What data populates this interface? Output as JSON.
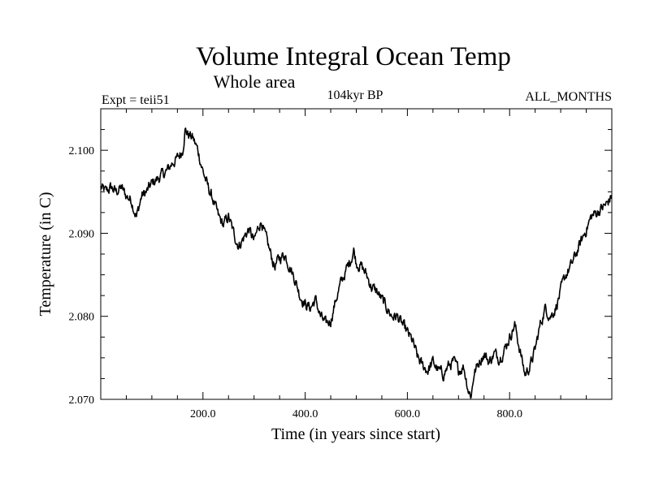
{
  "chart_data": {
    "type": "line",
    "title": "Volume Integral Ocean Temp",
    "subtitle": "Whole area",
    "experiment": "Expt = teii51",
    "period": "104kyr BP",
    "months": "ALL_MONTHS",
    "xlabel": "Time (in years since start)",
    "ylabel": "Temperature (in C)",
    "xlim": [
      0,
      1000
    ],
    "ylim": [
      2.07,
      2.105
    ],
    "x_ticks": [
      {
        "value": 200,
        "label": "200.0"
      },
      {
        "value": 400,
        "label": "400.0"
      },
      {
        "value": 600,
        "label": "600.0"
      },
      {
        "value": 800,
        "label": "800.0"
      }
    ],
    "y_ticks": [
      {
        "value": 2.07,
        "label": "2.070"
      },
      {
        "value": 2.08,
        "label": "2.080"
      },
      {
        "value": 2.09,
        "label": "2.090"
      },
      {
        "value": 2.1,
        "label": "2.100"
      }
    ],
    "grid": false,
    "line_color": "#000000",
    "series": [
      {
        "x": [
          0,
          10,
          20,
          30,
          40,
          50,
          60,
          70,
          80,
          90,
          100,
          110,
          120,
          130,
          140,
          150,
          160,
          165,
          170,
          180,
          190,
          200,
          210,
          220,
          230,
          240,
          250,
          260,
          270,
          280,
          290,
          300,
          310,
          315,
          320,
          330,
          340,
          350,
          360,
          370,
          380,
          390,
          400,
          410,
          420,
          430,
          440,
          450,
          460,
          470,
          480,
          490,
          495,
          500,
          510,
          520,
          530,
          540,
          550,
          560,
          570,
          580,
          590,
          600,
          610,
          620,
          630,
          640,
          650,
          660,
          670,
          680,
          690,
          700,
          710,
          720,
          725,
          730,
          740,
          750,
          760,
          770,
          780,
          790,
          800,
          810,
          820,
          830,
          840,
          850,
          860,
          870,
          880,
          890,
          900,
          910,
          920,
          930,
          940,
          950,
          960,
          970,
          980,
          990,
          1000
        ],
        "values": [
          2.0955,
          2.095,
          2.0955,
          2.095,
          2.0955,
          2.0945,
          2.094,
          2.092,
          2.0945,
          2.095,
          2.096,
          2.0965,
          2.097,
          2.0975,
          2.0985,
          2.099,
          2.1,
          2.1025,
          2.102,
          2.1015,
          2.1,
          2.0975,
          2.0955,
          2.094,
          2.092,
          2.091,
          2.092,
          2.09,
          2.0885,
          2.0895,
          2.0905,
          2.089,
          2.091,
          2.0915,
          2.09,
          2.088,
          2.086,
          2.087,
          2.0875,
          2.086,
          2.0845,
          2.0825,
          2.0815,
          2.081,
          2.082,
          2.08,
          2.079,
          2.0795,
          2.082,
          2.084,
          2.0855,
          2.087,
          2.088,
          2.0865,
          2.086,
          2.085,
          2.0835,
          2.083,
          2.082,
          2.081,
          2.08,
          2.08,
          2.079,
          2.078,
          2.077,
          2.075,
          2.074,
          2.0735,
          2.0745,
          2.0735,
          2.073,
          2.074,
          2.0745,
          2.0735,
          2.074,
          2.071,
          2.0705,
          2.073,
          2.0745,
          2.0755,
          2.0745,
          2.0755,
          2.075,
          2.076,
          2.0775,
          2.079,
          2.076,
          2.073,
          2.074,
          2.076,
          2.079,
          2.081,
          2.08,
          2.081,
          2.083,
          2.085,
          2.086,
          2.0875,
          2.089,
          2.0905,
          2.092,
          2.0925,
          2.093,
          2.0935,
          2.0945
        ]
      }
    ]
  }
}
